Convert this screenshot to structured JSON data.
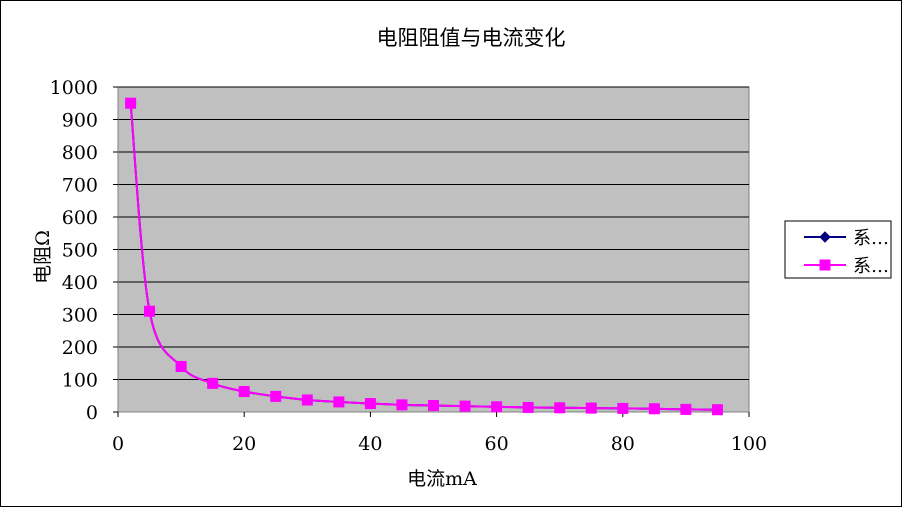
{
  "chart_data": {
    "type": "line",
    "title": "电阻阻值与电流变化",
    "xlabel": "电流mA",
    "ylabel": "电阻Ω",
    "xlim": [
      0,
      100
    ],
    "ylim": [
      0,
      1000
    ],
    "xticks": [
      0,
      20,
      40,
      60,
      80,
      100
    ],
    "yticks": [
      0,
      100,
      200,
      300,
      400,
      500,
      600,
      700,
      800,
      900,
      1000
    ],
    "grid": true,
    "plot_background": "#c0c0c0",
    "legend_position": "right",
    "series": [
      {
        "name": "系…",
        "color": "#000080",
        "marker": "diamond",
        "x": [
          2,
          5,
          10,
          15,
          20,
          25,
          30,
          35,
          40,
          45,
          50,
          55,
          60,
          65,
          70,
          75,
          80,
          85,
          90,
          95
        ],
        "y": [
          950,
          310,
          140,
          88,
          63,
          48,
          37,
          31,
          26,
          22,
          20,
          18,
          16,
          14,
          13,
          12,
          11,
          10,
          8,
          7
        ]
      },
      {
        "name": "系…",
        "color": "#ff00ff",
        "marker": "square",
        "x": [
          2,
          5,
          10,
          15,
          20,
          25,
          30,
          35,
          40,
          45,
          50,
          55,
          60,
          65,
          70,
          75,
          80,
          85,
          90,
          95
        ],
        "y": [
          950,
          310,
          140,
          88,
          63,
          48,
          37,
          31,
          26,
          22,
          20,
          18,
          16,
          14,
          13,
          12,
          11,
          10,
          8,
          7
        ]
      }
    ]
  }
}
